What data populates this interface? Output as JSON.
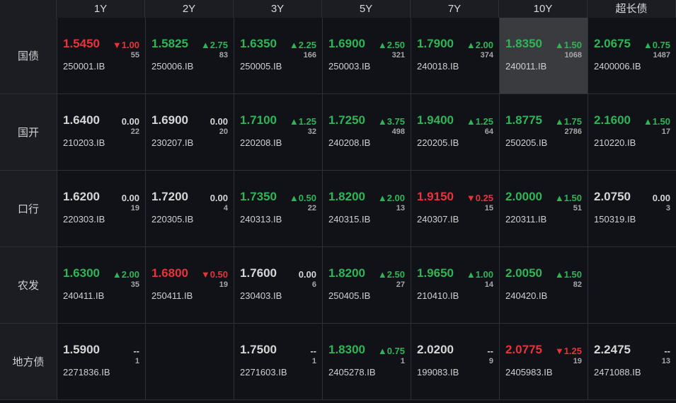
{
  "table": {
    "header": [
      "1Y",
      "2Y",
      "3Y",
      "5Y",
      "7Y",
      "10Y",
      "超长债"
    ],
    "rows": [
      {
        "label": "国债",
        "cells": [
          {
            "yield": "1.5450",
            "change": "▼1.00",
            "count": "55",
            "code": "250001.IB"
          },
          {
            "yield": "1.5825",
            "change": "▲2.75",
            "count": "83",
            "code": "250006.IB"
          },
          {
            "yield": "1.6350",
            "change": "▲2.25",
            "count": "166",
            "code": "250005.IB"
          },
          {
            "yield": "1.6900",
            "change": "▲2.50",
            "count": "321",
            "code": "250003.IB"
          },
          {
            "yield": "1.7900",
            "change": "▲2.00",
            "count": "374",
            "code": "240018.IB"
          },
          {
            "yield": "1.8350",
            "change": "▲1.50",
            "count": "1068",
            "code": "240011.IB"
          },
          {
            "yield": "2.0675",
            "change": "▲0.75",
            "count": "1487",
            "code": "2400006.IB"
          }
        ]
      },
      {
        "label": "国开",
        "cells": [
          {
            "yield": "1.6400",
            "change": "0.00",
            "count": "22",
            "code": "210203.IB"
          },
          {
            "yield": "1.6900",
            "change": "0.00",
            "count": "20",
            "code": "230207.IB"
          },
          {
            "yield": "1.7100",
            "change": "▲1.25",
            "count": "32",
            "code": "220208.IB"
          },
          {
            "yield": "1.7250",
            "change": "▲3.75",
            "count": "498",
            "code": "240208.IB"
          },
          {
            "yield": "1.9400",
            "change": "▲1.25",
            "count": "64",
            "code": "220205.IB"
          },
          {
            "yield": "1.8775",
            "change": "▲1.75",
            "count": "2786",
            "code": "250205.IB"
          },
          {
            "yield": "2.1600",
            "change": "▲1.50",
            "count": "17",
            "code": "210220.IB"
          }
        ]
      },
      {
        "label": "口行",
        "cells": [
          {
            "yield": "1.6200",
            "change": "0.00",
            "count": "19",
            "code": "220303.IB"
          },
          {
            "yield": "1.7200",
            "change": "0.00",
            "count": "4",
            "code": "220305.IB"
          },
          {
            "yield": "1.7350",
            "change": "▲0.50",
            "count": "22",
            "code": "240313.IB"
          },
          {
            "yield": "1.8200",
            "change": "▲2.00",
            "count": "13",
            "code": "240315.IB"
          },
          {
            "yield": "1.9150",
            "change": "▼0.25",
            "count": "15",
            "code": "240307.IB"
          },
          {
            "yield": "2.0000",
            "change": "▲1.50",
            "count": "51",
            "code": "220311.IB"
          },
          {
            "yield": "2.0750",
            "change": "0.00",
            "count": "3",
            "code": "150319.IB"
          }
        ]
      },
      {
        "label": "农发",
        "cells": [
          {
            "yield": "1.6300",
            "change": "▲2.00",
            "count": "35",
            "code": "240411.IB"
          },
          {
            "yield": "1.6800",
            "change": "▼0.50",
            "count": "19",
            "code": "250411.IB"
          },
          {
            "yield": "1.7600",
            "change": "0.00",
            "count": "6",
            "code": "230403.IB"
          },
          {
            "yield": "1.8200",
            "change": "▲2.50",
            "count": "27",
            "code": "250405.IB"
          },
          {
            "yield": "1.9650",
            "change": "▲1.00",
            "count": "14",
            "code": "210410.IB"
          },
          {
            "yield": "2.0050",
            "change": "▲1.50",
            "count": "82",
            "code": "240420.IB"
          },
          null
        ]
      },
      {
        "label": "地方债",
        "cells": [
          {
            "yield": "1.5900",
            "change": "--",
            "count": "1",
            "code": "2271836.IB"
          },
          null,
          {
            "yield": "1.7500",
            "change": "--",
            "count": "1",
            "code": "2271603.IB"
          },
          {
            "yield": "1.8300",
            "change": "▲0.75",
            "count": "1",
            "code": "2405278.IB"
          },
          {
            "yield": "2.0200",
            "change": "--",
            "count": "9",
            "code": "199083.IB"
          },
          {
            "yield": "2.0775",
            "change": "▼1.25",
            "count": "19",
            "code": "2405983.IB"
          },
          {
            "yield": "2.2475",
            "change": "--",
            "count": "13",
            "code": "2471088.IB"
          }
        ]
      }
    ]
  }
}
